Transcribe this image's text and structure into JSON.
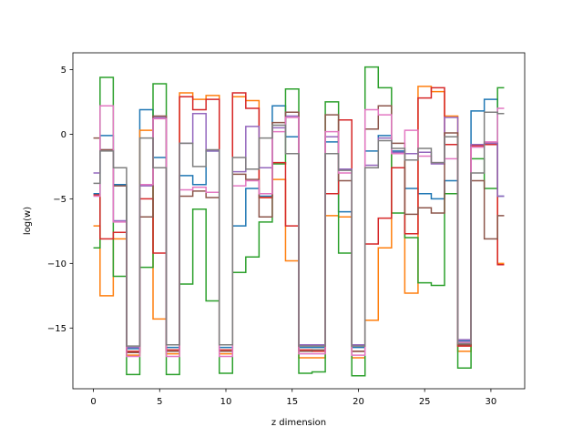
{
  "chart_data": {
    "type": "line",
    "drawstyle": "steps-mid",
    "title": "",
    "xlabel": "z dimension",
    "ylabel": "log(w)",
    "xlim": [
      -1.55,
      32.55
    ],
    "ylim": [
      -19.7,
      6.3
    ],
    "xticks": [
      0,
      5,
      10,
      15,
      20,
      25,
      30
    ],
    "yticks": [
      5,
      0,
      -5,
      -10,
      -15
    ],
    "grid": false,
    "legend": "none",
    "x": [
      0,
      1,
      2,
      3,
      4,
      5,
      6,
      7,
      8,
      9,
      10,
      11,
      12,
      13,
      14,
      15,
      16,
      17,
      18,
      19,
      20,
      21,
      22,
      23,
      24,
      25,
      26,
      27,
      28,
      29,
      30,
      31
    ],
    "series": [
      {
        "color": "#1f77b4",
        "values": [
          -4.6,
          -0.1,
          -3.9,
          -16.6,
          1.9,
          -1.8,
          -16.5,
          -3.2,
          -3.9,
          -1.3,
          -16.5,
          -7.1,
          -4.2,
          -4.8,
          2.2,
          -0.2,
          -16.5,
          -16.5,
          -0.6,
          -6.0,
          -16.5,
          -1.3,
          -0.1,
          -1.3,
          -4.2,
          -4.6,
          -5.0,
          -3.6,
          -16.0,
          1.8,
          2.7,
          -4.8
        ]
      },
      {
        "color": "#ff7f0e",
        "values": [
          -7.1,
          -12.5,
          -8.1,
          -17.1,
          0.3,
          -14.3,
          -17.0,
          3.2,
          2.7,
          3.0,
          -17.0,
          2.9,
          2.6,
          -4.9,
          -3.5,
          -9.8,
          -17.3,
          -17.3,
          -6.3,
          -6.4,
          -17.3,
          -14.4,
          -8.8,
          -1.5,
          -12.3,
          3.7,
          3.3,
          1.4,
          -16.8,
          -0.8,
          -0.7,
          -10.0
        ]
      },
      {
        "color": "#2ca02c",
        "values": [
          -8.8,
          4.4,
          -11.0,
          -18.6,
          -10.3,
          3.9,
          -18.6,
          -11.6,
          -5.8,
          -12.9,
          -18.5,
          -10.7,
          -9.5,
          -6.8,
          -2.3,
          3.5,
          -18.5,
          -18.4,
          2.5,
          -9.2,
          -18.7,
          5.2,
          3.6,
          -6.1,
          -8.0,
          -11.5,
          -11.7,
          -4.6,
          -18.1,
          -1.9,
          -4.2,
          3.6
        ]
      },
      {
        "color": "#d62728",
        "values": [
          -4.7,
          -8.1,
          -7.6,
          -16.8,
          -5.0,
          -9.2,
          -16.7,
          2.9,
          1.9,
          2.7,
          -16.7,
          3.2,
          2.0,
          -4.9,
          -2.2,
          -7.1,
          -16.7,
          -16.8,
          -4.6,
          1.1,
          -16.8,
          -8.5,
          -6.5,
          -2.6,
          -7.7,
          2.8,
          3.6,
          -0.8,
          -16.4,
          -0.9,
          -0.8,
          -10.1
        ]
      },
      {
        "color": "#9467bd",
        "values": [
          -3.0,
          -1.2,
          -6.7,
          -16.5,
          -4.0,
          1.3,
          -16.3,
          -0.7,
          1.6,
          -1.3,
          -16.3,
          -2.9,
          0.6,
          -2.6,
          0.5,
          1.4,
          -16.3,
          -16.3,
          -0.2,
          -2.7,
          -16.3,
          -2.4,
          -0.3,
          -1.4,
          -1.5,
          -1.4,
          -2.3,
          1.3,
          -15.9,
          -0.8,
          -0.7,
          -4.8
        ]
      },
      {
        "color": "#8c564b",
        "values": [
          -0.3,
          -1.2,
          -4.0,
          -16.9,
          -6.4,
          1.4,
          -16.8,
          -4.8,
          -4.4,
          -4.9,
          -16.8,
          -3.1,
          -3.5,
          -6.4,
          0.9,
          1.7,
          -16.8,
          -16.7,
          1.5,
          -3.6,
          -16.8,
          0.4,
          2.2,
          -0.7,
          -6.2,
          -5.7,
          -6.1,
          0.1,
          -16.3,
          -3.6,
          -8.1,
          -6.3
        ]
      },
      {
        "color": "#e377c2",
        "values": [
          -4.8,
          2.2,
          -6.8,
          -17.2,
          -3.9,
          1.2,
          -17.2,
          -4.3,
          -4.1,
          -4.5,
          -17.2,
          -4.0,
          -3.6,
          -4.6,
          0.2,
          1.3,
          -17.0,
          -17.0,
          0.2,
          -3.0,
          -17.1,
          1.9,
          1.5,
          -1.5,
          0.3,
          -1.7,
          -2.2,
          -1.9,
          -16.1,
          -1.0,
          -0.6,
          2.0
        ]
      },
      {
        "color": "#7f7f7f",
        "values": [
          -3.8,
          -1.3,
          -2.6,
          -16.4,
          -0.3,
          -2.6,
          -16.3,
          -0.7,
          -2.5,
          -1.2,
          -16.3,
          -1.8,
          -2.7,
          -0.3,
          0.7,
          -1.5,
          -16.4,
          -16.4,
          -1.5,
          -2.8,
          -16.4,
          -2.6,
          -0.5,
          -1.1,
          -2.0,
          -1.1,
          -2.2,
          -0.2,
          -16.2,
          -3.0,
          1.7,
          1.6
        ]
      }
    ]
  }
}
